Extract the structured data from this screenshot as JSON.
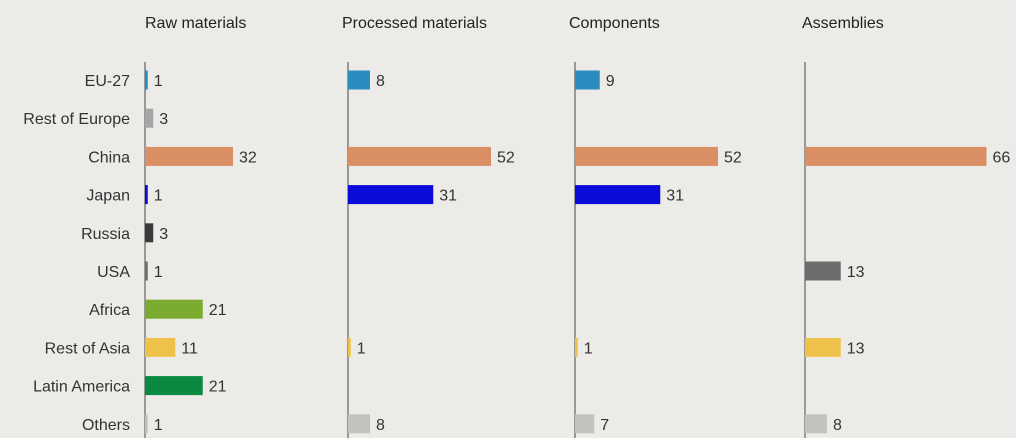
{
  "chart_data": {
    "type": "bar",
    "orientation": "horizontal",
    "layout": "small-multiples",
    "categories": [
      "EU-27",
      "Rest of Europe",
      "China",
      "Japan",
      "Russia",
      "USA",
      "Africa",
      "Rest of Asia",
      "Latin America",
      "Others"
    ],
    "category_colors": [
      "#2a8cbf",
      "#a5a5a5",
      "#d98e63",
      "#0b0bd9",
      "#3b3b3b",
      "#6c6c6c",
      "#7aab2e",
      "#eec24a",
      "#0a8a40",
      "#c4c2bf"
    ],
    "series": [
      {
        "name": "Raw materials",
        "values": [
          1,
          3,
          32,
          1,
          3,
          1,
          21,
          11,
          21,
          1
        ]
      },
      {
        "name": "Processed materials",
        "values": [
          8,
          null,
          52,
          31,
          null,
          null,
          null,
          1,
          null,
          8
        ]
      },
      {
        "name": "Components",
        "values": [
          9,
          null,
          52,
          31,
          null,
          null,
          null,
          1,
          null,
          7
        ]
      },
      {
        "name": "Assemblies",
        "values": [
          null,
          null,
          66,
          null,
          null,
          13,
          null,
          13,
          null,
          8
        ]
      }
    ],
    "xlim": [
      0,
      66
    ],
    "grid": false,
    "legend": "none"
  }
}
